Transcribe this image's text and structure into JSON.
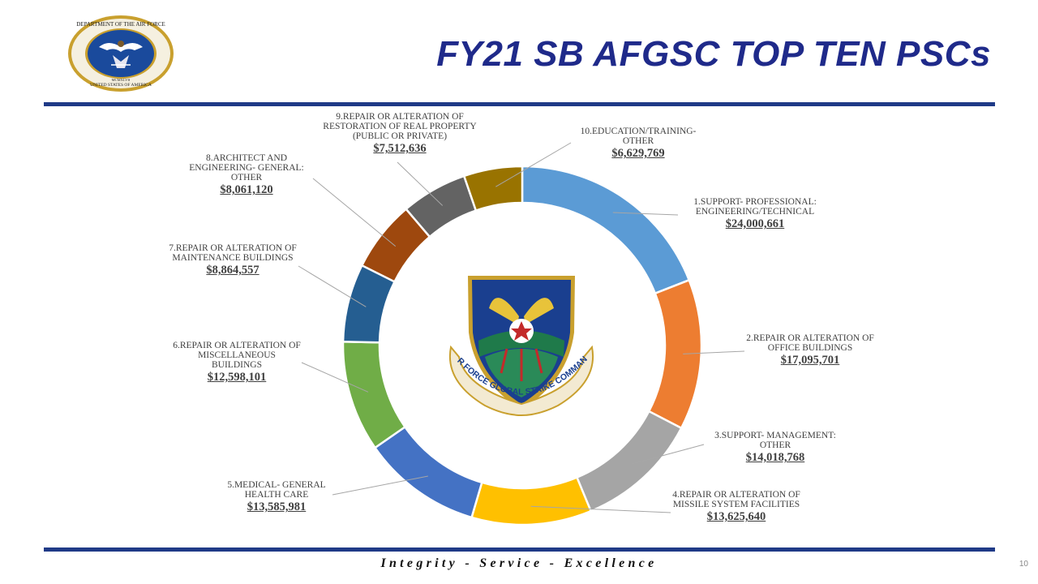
{
  "slide": {
    "title": "FY21 SB AFGSC TOP TEN PSCs",
    "footer": "Integrity - Service - Excellence",
    "page_number": "10"
  },
  "colors": {
    "title": "#1f2a8a",
    "rule": "#1f3a87"
  },
  "seal": {
    "ring_text": "DEPARTMENT OF THE AIR FORCE",
    "bottom_text": "UNITED STATES OF AMERICA",
    "year_text": "MCMXLVII"
  },
  "emblem": {
    "text": "AIR FORCE GLOBAL STRIKE COMMAND"
  },
  "chart_data": {
    "type": "pie",
    "donut": true,
    "legend": "none",
    "slices": [
      {
        "label": "1.SUPPORT- PROFESSIONAL: ENGINEERING/TECHNICAL",
        "value_text": "$24,000,661",
        "value": 24000661,
        "color": "#5b9bd5"
      },
      {
        "label": "2.REPAIR OR ALTERATION OF OFFICE BUILDINGS",
        "value_text": "$17,095,701",
        "value": 17095701,
        "color": "#ed7d31"
      },
      {
        "label": "3.SUPPORT- MANAGEMENT: OTHER",
        "value_text": "$14,018,768",
        "value": 14018768,
        "color": "#a5a5a5"
      },
      {
        "label": "4.REPAIR OR ALTERATION OF MISSILE SYSTEM FACILITIES",
        "value_text": "$13,625,640",
        "value": 13625640,
        "color": "#ffc000"
      },
      {
        "label": "5.MEDICAL- GENERAL HEALTH CARE",
        "value_text": "$13,585,981",
        "value": 13585981,
        "color": "#4472c4"
      },
      {
        "label": "6.REPAIR OR ALTERATION OF MISCELLANEOUS BUILDINGS",
        "value_text": "$12,598,101",
        "value": 12598101,
        "color": "#70ad47"
      },
      {
        "label": "7.REPAIR OR ALTERATION OF MAINTENANCE BUILDINGS",
        "value_text": "$8,864,557",
        "value": 8864557,
        "color": "#255e91"
      },
      {
        "label": "8.ARCHITECT AND ENGINEERING- GENERAL: OTHER",
        "value_text": "$8,061,120",
        "value": 8061120,
        "color": "#9e480e"
      },
      {
        "label": "9.REPAIR OR ALTERATION OF RESTORATION OF REAL PROPERTY (PUBLIC OR PRIVATE)",
        "value_text": "$7,512,636",
        "value": 7512636,
        "color": "#636363"
      },
      {
        "label": "10.EDUCATION/TRAINING- OTHER",
        "value_text": "$6,629,769",
        "value": 6629769,
        "color": "#997300"
      }
    ]
  }
}
